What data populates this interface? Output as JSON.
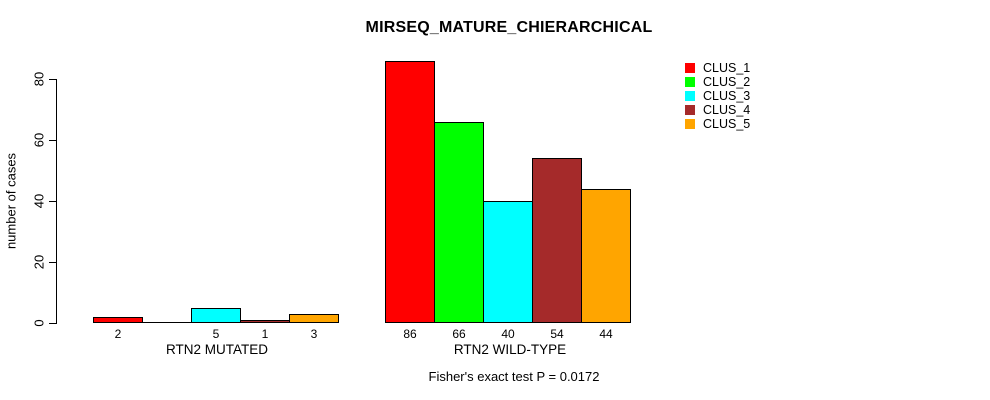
{
  "title": "MIRSEQ_MATURE_CHIERARCHICAL",
  "chart_data": {
    "type": "bar",
    "title": "MIRSEQ_MATURE_CHIERARCHICAL",
    "ylabel": "number of cases",
    "xlabel": "",
    "ylim": [
      0,
      80
    ],
    "yticks": [
      0,
      20,
      40,
      60,
      80
    ],
    "categories": [
      "RTN2 MUTATED",
      "RTN2 WILD-TYPE"
    ],
    "series": [
      {
        "name": "CLUS_1",
        "color": "#ff0000",
        "values": [
          2,
          86
        ]
      },
      {
        "name": "CLUS_2",
        "color": "#00ff00",
        "values": [
          0,
          66
        ]
      },
      {
        "name": "CLUS_3",
        "color": "#00ffff",
        "values": [
          5,
          40
        ]
      },
      {
        "name": "CLUS_4",
        "color": "#a52a2a",
        "values": [
          1,
          54
        ]
      },
      {
        "name": "CLUS_5",
        "color": "#ffa500",
        "values": [
          3,
          44
        ]
      }
    ],
    "bar_value_labels": [
      [
        "2",
        "",
        "5",
        "1",
        "3"
      ],
      [
        "86",
        "66",
        "40",
        "54",
        "44"
      ]
    ],
    "legend_position": "right-outside",
    "grid": false,
    "annotation": "Fisher's exact test P = 0.0172",
    "axis_color": "#000000",
    "background": "#ffffff"
  }
}
